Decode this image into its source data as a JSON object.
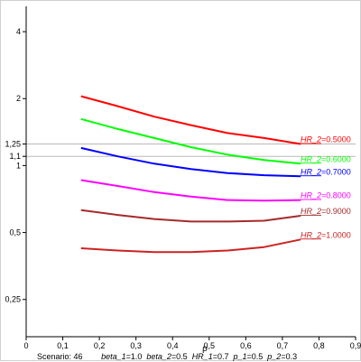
{
  "chart_data": {
    "type": "line",
    "xlabel": "ρ",
    "ylabel": "",
    "title": "",
    "xlim": [
      0,
      0.9
    ],
    "ylim": [
      0.17,
      5.2
    ],
    "yscale": "log",
    "xticks": [
      "0",
      "0,1",
      "0,2",
      "0,3",
      "0,4",
      "0,5",
      "0,6",
      "0,7",
      "0,8",
      "0,9"
    ],
    "xtick_values": [
      0,
      0.1,
      0.2,
      0.3,
      0.4,
      0.5,
      0.6,
      0.7,
      0.8,
      0.9
    ],
    "yticks": [
      "0,25",
      "0,5",
      "1",
      "1,1",
      "1,25",
      "2",
      "4"
    ],
    "ytick_values": [
      0.25,
      0.5,
      1,
      1.1,
      1.25,
      2,
      4
    ],
    "reference_lines": [
      1.25,
      1.1
    ],
    "x": [
      0.15,
      0.25,
      0.35,
      0.45,
      0.55,
      0.65,
      0.75
    ],
    "series": [
      {
        "name": "HR_2",
        "label_value": "=0.5000",
        "color": "#ff0000",
        "values": [
          2.05,
          1.85,
          1.66,
          1.52,
          1.4,
          1.33,
          1.25
        ]
      },
      {
        "name": "HR_2",
        "label_value": "=0.6000",
        "color": "#00ff00",
        "values": [
          1.62,
          1.46,
          1.33,
          1.21,
          1.12,
          1.06,
          1.02
        ]
      },
      {
        "name": "HR_2",
        "label_value": "=0.7000",
        "color": "#0000ff",
        "values": [
          1.2,
          1.1,
          1.02,
          0.965,
          0.925,
          0.905,
          0.895
        ]
      },
      {
        "name": "HR_2",
        "label_value": "=0.8000",
        "color": "#ff00ff",
        "values": [
          0.86,
          0.81,
          0.76,
          0.725,
          0.7,
          0.695,
          0.7
        ]
      },
      {
        "name": "HR_2",
        "label_value": "=0.9000",
        "color": "#a52a2a",
        "values": [
          0.63,
          0.6,
          0.575,
          0.56,
          0.56,
          0.565,
          0.595
        ]
      },
      {
        "name": "HR_2",
        "label_value": "=1.0000",
        "color": "#cc2222",
        "values": [
          0.425,
          0.415,
          0.408,
          0.408,
          0.415,
          0.43,
          0.465
        ]
      }
    ]
  },
  "caption": {
    "scenario": "Scenario: 46",
    "params": [
      {
        "name": "beta_1",
        "value": "=1.0"
      },
      {
        "name": "beta_2",
        "value": "=0.5"
      },
      {
        "name": "HR_1",
        "value": "=0.7"
      },
      {
        "name": "p_1",
        "value": "=0.5"
      },
      {
        "name": "p_2",
        "value": "=0.3"
      }
    ]
  }
}
